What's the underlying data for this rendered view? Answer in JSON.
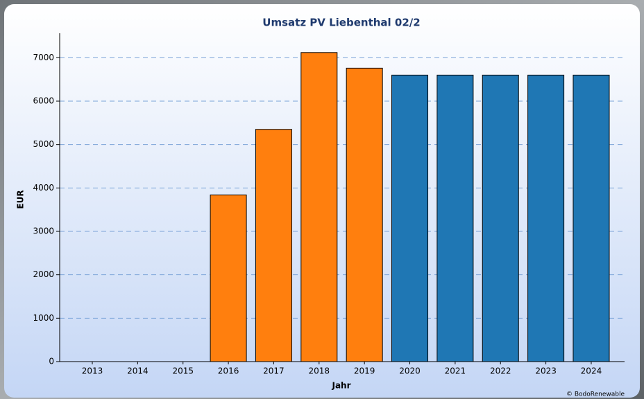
{
  "chart_data": {
    "type": "bar",
    "title": "Umsatz PV Liebenthal 02/2",
    "x_label": "Jahr",
    "y_label": "EUR",
    "credit": "© BodoRenewable",
    "categories": [
      "2013",
      "2014",
      "2015",
      "2016",
      "2017",
      "2018",
      "2019",
      "2020",
      "2021",
      "2022",
      "2023",
      "2024"
    ],
    "values": [
      null,
      null,
      null,
      3840,
      5350,
      7120,
      6760,
      6600,
      6600,
      6600,
      6600,
      6600
    ],
    "colors": [
      "#ff7f0e",
      "#ff7f0e",
      "#ff7f0e",
      "#ff7f0e",
      "#ff7f0e",
      "#ff7f0e",
      "#ff7f0e",
      "#1f77b4",
      "#1f77b4",
      "#1f77b4",
      "#1f77b4",
      "#1f77b4"
    ],
    "ylim": [
      0,
      7500
    ],
    "yticks": [
      0,
      1000,
      2000,
      3000,
      4000,
      5000,
      6000,
      7000
    ],
    "grid": true
  }
}
